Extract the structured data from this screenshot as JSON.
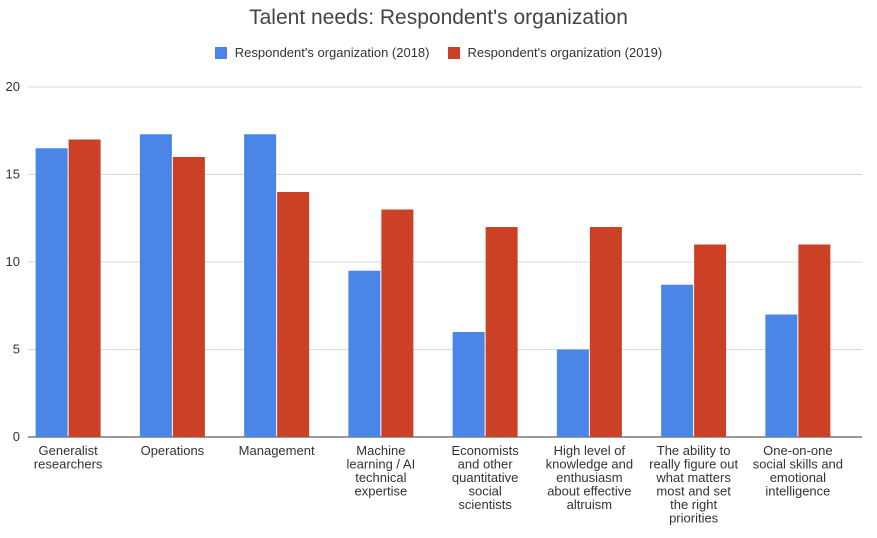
{
  "chart_data": {
    "type": "bar",
    "title": "Talent needs: Respondent's organization",
    "xlabel": "",
    "ylabel": "",
    "ylim": [
      0,
      20
    ],
    "yticks": [
      0,
      5,
      10,
      15,
      20
    ],
    "grid": true,
    "legend_position": "top",
    "categories": [
      "Generalist researchers",
      "Operations",
      "Management",
      "Machine learning / AI technical expertise",
      "Economists and other quantitative social scientists",
      "High level of knowledge and enthusiasm about effective altruism",
      "The ability to really figure out what matters most and set the right priorities",
      "One-on-one social skills and emotional intelligence"
    ],
    "category_lines": [
      [
        "Generalist",
        "researchers"
      ],
      [
        "Operations"
      ],
      [
        "Management"
      ],
      [
        "Machine",
        "learning / AI",
        "technical",
        "expertise"
      ],
      [
        "Economists",
        "and other",
        "quantitative",
        "social",
        "scientists"
      ],
      [
        "High level of",
        "knowledge and",
        "enthusiasm",
        "about effective",
        "altruism"
      ],
      [
        "The ability to",
        "really figure out",
        "what matters",
        "most and set",
        "the right",
        "priorities"
      ],
      [
        "One-on-one",
        "social skills and",
        "emotional",
        "intelligence"
      ]
    ],
    "series": [
      {
        "name": "Respondent's organization (2018)",
        "color": "#4a86e8",
        "values": [
          16.5,
          17.3,
          17.3,
          9.5,
          6,
          5,
          8.7,
          7
        ]
      },
      {
        "name": "Respondent's organization (2019)",
        "color": "#cc4125",
        "values": [
          17,
          16,
          14,
          13,
          12,
          12,
          11,
          11
        ]
      }
    ]
  }
}
